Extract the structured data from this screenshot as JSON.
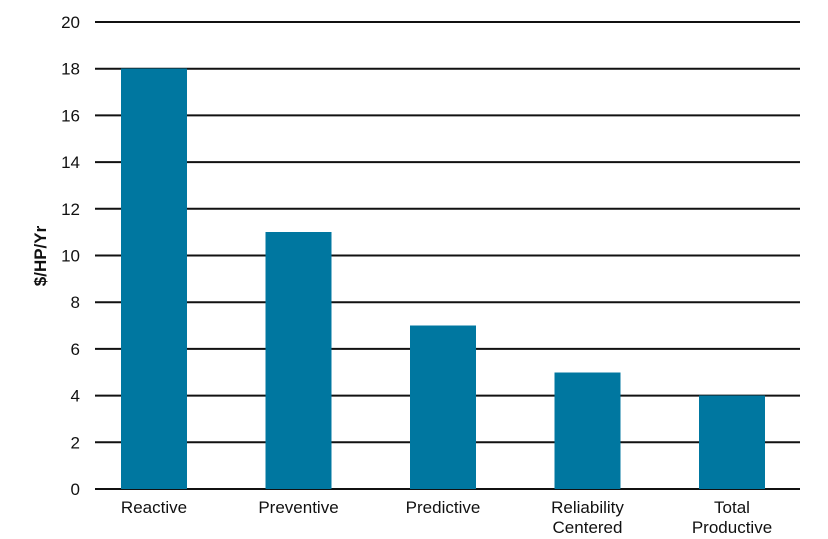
{
  "chart_data": {
    "type": "bar",
    "categories": [
      [
        "Reactive"
      ],
      [
        "Preventive"
      ],
      [
        "Predictive"
      ],
      [
        "Reliability",
        "Centered"
      ],
      [
        "Total",
        "Productive"
      ]
    ],
    "values": [
      18,
      11,
      7,
      5,
      4
    ],
    "title": "",
    "xlabel": "",
    "ylabel": "$/HP/Yr",
    "ylim": [
      0,
      20
    ],
    "yticks": [
      0,
      2,
      4,
      6,
      8,
      10,
      12,
      14,
      16,
      18,
      20
    ],
    "grid": true,
    "legend": "none",
    "bar_color": "#0077A0"
  }
}
